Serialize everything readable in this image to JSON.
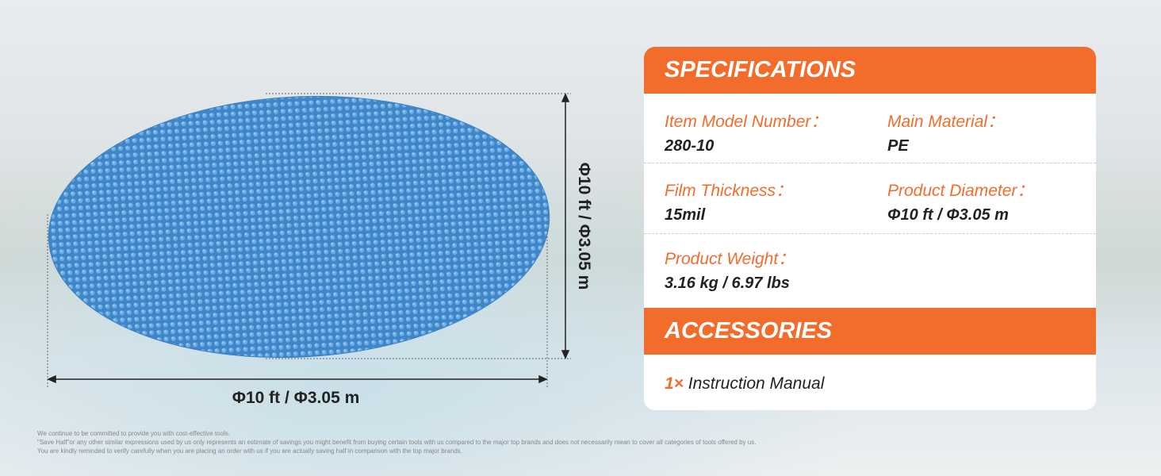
{
  "dimensions": {
    "width": "Φ10 ft / Φ3.05 m",
    "height": "Φ10 ft / Φ3.05 m"
  },
  "specifications": {
    "title": "SPECIFICATIONS",
    "items": [
      {
        "label": "Item Model Number：",
        "value": "280-10"
      },
      {
        "label": "Main Material：",
        "value": "PE"
      },
      {
        "label": "Film Thickness：",
        "value": "15mil"
      },
      {
        "label": "Product Diameter：",
        "value": "Φ10 ft / Φ3.05 m"
      },
      {
        "label": "Product Weight：",
        "value": "3.16 kg / 6.97 lbs"
      }
    ]
  },
  "accessories": {
    "title": "ACCESSORIES",
    "items": [
      {
        "quantity": "1×",
        "name": "Instruction Manual"
      }
    ]
  },
  "disclaimer": [
    "We continue to be committed to provide you with cost-effective tools.",
    "\"Save Half\"or any other similar expressions used by us only represents an estimate of savings you might benefit from buying certain tools with us compared to the major top brands and does not necessarily mean to cover all categories of tools offered by us.",
    "You are kindly reminded to verify carefully when you are placing an order with us if you are actually saving half in comparison with the top major brands."
  ]
}
